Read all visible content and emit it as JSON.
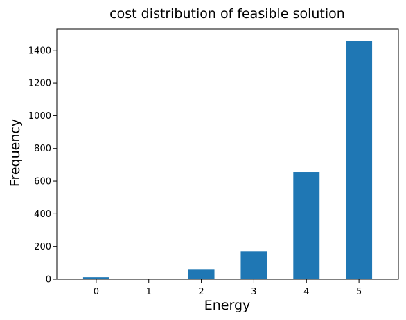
{
  "chart_data": {
    "type": "bar",
    "title": "cost distribution of feasible solution",
    "xlabel": "Energy",
    "ylabel": "Frequency",
    "categories": [
      "0",
      "1",
      "2",
      "3",
      "4",
      "5"
    ],
    "values": [
      12,
      0,
      62,
      172,
      655,
      1458
    ],
    "ylim": [
      0,
      1530
    ],
    "yticks": [
      0,
      200,
      400,
      600,
      800,
      1000,
      1200,
      1400
    ],
    "bar_color": "#1f77b4",
    "grid": false,
    "legend": "none"
  }
}
